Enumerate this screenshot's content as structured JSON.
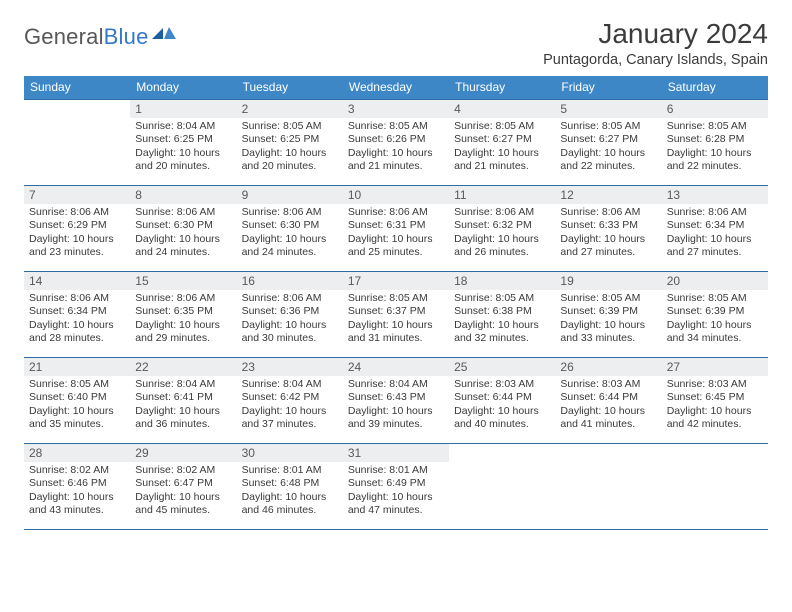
{
  "brand": {
    "name_a": "General",
    "name_b": "Blue"
  },
  "title": "January 2024",
  "location": "Puntagorda, Canary Islands, Spain",
  "colors": {
    "header_bg": "#3d87c7",
    "row_border": "#2e6ca3",
    "daynum_bg": "#eceeef",
    "brand_blue": "#3578c7"
  },
  "day_headers": [
    "Sunday",
    "Monday",
    "Tuesday",
    "Wednesday",
    "Thursday",
    "Friday",
    "Saturday"
  ],
  "weeks": [
    [
      null,
      {
        "d": "1",
        "sr": "8:04 AM",
        "ss": "6:25 PM",
        "dl": "10 hours and 20 minutes."
      },
      {
        "d": "2",
        "sr": "8:05 AM",
        "ss": "6:25 PM",
        "dl": "10 hours and 20 minutes."
      },
      {
        "d": "3",
        "sr": "8:05 AM",
        "ss": "6:26 PM",
        "dl": "10 hours and 21 minutes."
      },
      {
        "d": "4",
        "sr": "8:05 AM",
        "ss": "6:27 PM",
        "dl": "10 hours and 21 minutes."
      },
      {
        "d": "5",
        "sr": "8:05 AM",
        "ss": "6:27 PM",
        "dl": "10 hours and 22 minutes."
      },
      {
        "d": "6",
        "sr": "8:05 AM",
        "ss": "6:28 PM",
        "dl": "10 hours and 22 minutes."
      }
    ],
    [
      {
        "d": "7",
        "sr": "8:06 AM",
        "ss": "6:29 PM",
        "dl": "10 hours and 23 minutes."
      },
      {
        "d": "8",
        "sr": "8:06 AM",
        "ss": "6:30 PM",
        "dl": "10 hours and 24 minutes."
      },
      {
        "d": "9",
        "sr": "8:06 AM",
        "ss": "6:30 PM",
        "dl": "10 hours and 24 minutes."
      },
      {
        "d": "10",
        "sr": "8:06 AM",
        "ss": "6:31 PM",
        "dl": "10 hours and 25 minutes."
      },
      {
        "d": "11",
        "sr": "8:06 AM",
        "ss": "6:32 PM",
        "dl": "10 hours and 26 minutes."
      },
      {
        "d": "12",
        "sr": "8:06 AM",
        "ss": "6:33 PM",
        "dl": "10 hours and 27 minutes."
      },
      {
        "d": "13",
        "sr": "8:06 AM",
        "ss": "6:34 PM",
        "dl": "10 hours and 27 minutes."
      }
    ],
    [
      {
        "d": "14",
        "sr": "8:06 AM",
        "ss": "6:34 PM",
        "dl": "10 hours and 28 minutes."
      },
      {
        "d": "15",
        "sr": "8:06 AM",
        "ss": "6:35 PM",
        "dl": "10 hours and 29 minutes."
      },
      {
        "d": "16",
        "sr": "8:06 AM",
        "ss": "6:36 PM",
        "dl": "10 hours and 30 minutes."
      },
      {
        "d": "17",
        "sr": "8:05 AM",
        "ss": "6:37 PM",
        "dl": "10 hours and 31 minutes."
      },
      {
        "d": "18",
        "sr": "8:05 AM",
        "ss": "6:38 PM",
        "dl": "10 hours and 32 minutes."
      },
      {
        "d": "19",
        "sr": "8:05 AM",
        "ss": "6:39 PM",
        "dl": "10 hours and 33 minutes."
      },
      {
        "d": "20",
        "sr": "8:05 AM",
        "ss": "6:39 PM",
        "dl": "10 hours and 34 minutes."
      }
    ],
    [
      {
        "d": "21",
        "sr": "8:05 AM",
        "ss": "6:40 PM",
        "dl": "10 hours and 35 minutes."
      },
      {
        "d": "22",
        "sr": "8:04 AM",
        "ss": "6:41 PM",
        "dl": "10 hours and 36 minutes."
      },
      {
        "d": "23",
        "sr": "8:04 AM",
        "ss": "6:42 PM",
        "dl": "10 hours and 37 minutes."
      },
      {
        "d": "24",
        "sr": "8:04 AM",
        "ss": "6:43 PM",
        "dl": "10 hours and 39 minutes."
      },
      {
        "d": "25",
        "sr": "8:03 AM",
        "ss": "6:44 PM",
        "dl": "10 hours and 40 minutes."
      },
      {
        "d": "26",
        "sr": "8:03 AM",
        "ss": "6:44 PM",
        "dl": "10 hours and 41 minutes."
      },
      {
        "d": "27",
        "sr": "8:03 AM",
        "ss": "6:45 PM",
        "dl": "10 hours and 42 minutes."
      }
    ],
    [
      {
        "d": "28",
        "sr": "8:02 AM",
        "ss": "6:46 PM",
        "dl": "10 hours and 43 minutes."
      },
      {
        "d": "29",
        "sr": "8:02 AM",
        "ss": "6:47 PM",
        "dl": "10 hours and 45 minutes."
      },
      {
        "d": "30",
        "sr": "8:01 AM",
        "ss": "6:48 PM",
        "dl": "10 hours and 46 minutes."
      },
      {
        "d": "31",
        "sr": "8:01 AM",
        "ss": "6:49 PM",
        "dl": "10 hours and 47 minutes."
      },
      null,
      null,
      null
    ]
  ],
  "labels": {
    "sunrise": "Sunrise:",
    "sunset": "Sunset:",
    "daylight": "Daylight:"
  }
}
